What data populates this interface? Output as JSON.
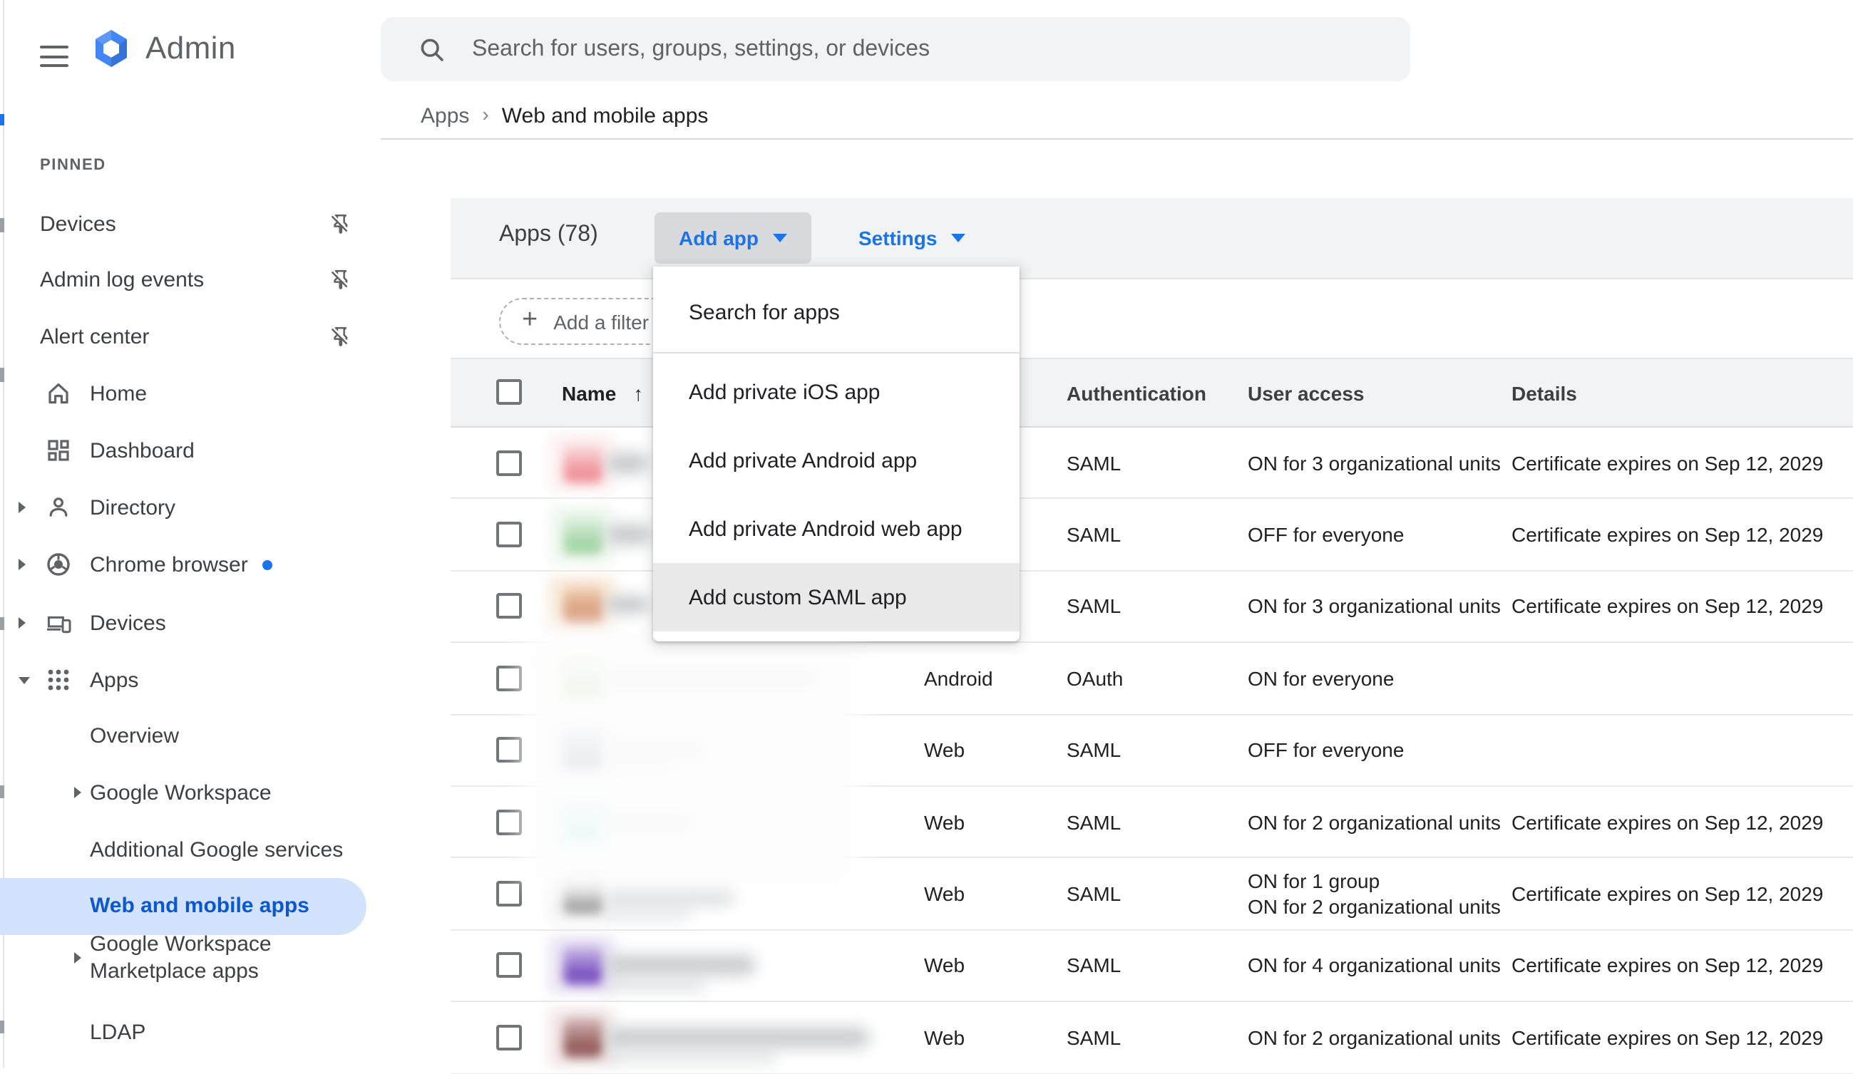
{
  "topbar": {
    "app_name": "Admin",
    "search_placeholder": "Search for users, groups, settings, or devices"
  },
  "breadcrumb": {
    "parent": "Apps",
    "separator": "›",
    "current": "Web and mobile apps"
  },
  "sidebar": {
    "pinned_label": "PINNED",
    "pinned_items": [
      {
        "label": "Devices"
      },
      {
        "label": "Admin log events"
      },
      {
        "label": "Alert center"
      }
    ],
    "items": [
      {
        "label": "Home",
        "icon": "home-icon",
        "arrow": "",
        "dot": false
      },
      {
        "label": "Dashboard",
        "icon": "dashboard-icon",
        "arrow": "",
        "dot": false
      },
      {
        "label": "Directory",
        "icon": "person-icon",
        "arrow": "right",
        "dot": false
      },
      {
        "label": "Chrome browser",
        "icon": "chrome-icon",
        "arrow": "right",
        "dot": true
      },
      {
        "label": "Devices",
        "icon": "devices-icon",
        "arrow": "right",
        "dot": false
      },
      {
        "label": "Apps",
        "icon": "apps-grid-icon",
        "arrow": "down",
        "dot": false
      }
    ],
    "apps_children": [
      {
        "label": "Overview",
        "arrow": "",
        "selected": false
      },
      {
        "label": "Google Workspace",
        "arrow": "right",
        "selected": false
      },
      {
        "label": "Additional Google services",
        "arrow": "",
        "selected": false
      },
      {
        "label": "Web and mobile apps",
        "arrow": "",
        "selected": true
      },
      {
        "lines": [
          "Google Workspace",
          "Marketplace apps"
        ],
        "arrow": "right",
        "selected": false
      },
      {
        "label": "LDAP",
        "arrow": "",
        "selected": false
      }
    ]
  },
  "toolbar": {
    "apps_count": "Apps (78)",
    "add_app": "Add app",
    "settings": "Settings"
  },
  "filter_bar": {
    "add_filter": "Add a filter"
  },
  "add_app_menu": {
    "items": [
      "Search for apps",
      "Add private iOS app",
      "Add private Android app",
      "Add private Android web app",
      "Add custom SAML app"
    ],
    "highlighted_index": 4,
    "highlighted_item": "Add custom SAML app"
  },
  "table": {
    "headers": {
      "name": "Name",
      "authentication": "Authentication",
      "user_access": "User access",
      "details": "Details"
    },
    "sort": {
      "column": "Name",
      "direction": "ascending",
      "icon": "↑"
    },
    "rows": [
      {
        "platform": "",
        "authentication": "SAML",
        "user_access": [
          "ON for 3 organizational units"
        ],
        "details": "Certificate expires on Sep 12, 2029",
        "icon_colors": {
          "top": "#fbe3e4",
          "bottom": "#ef949b",
          "halo": "#fdf3f3"
        },
        "redaction": {
          "w": 30,
          "o": 0.9,
          "w2": 0,
          "o2": 0
        }
      },
      {
        "platform": "",
        "authentication": "SAML",
        "user_access": [
          "OFF for everyone"
        ],
        "details": "Certificate expires on Sep 12, 2029",
        "icon_colors": {
          "top": "#e6f4e7",
          "bottom": "#a5d6a7",
          "halo": "#f2f9f2"
        },
        "redaction": {
          "w": 32,
          "o": 0.9,
          "w2": 0,
          "o2": 0
        }
      },
      {
        "platform": "",
        "authentication": "SAML",
        "user_access": [
          "ON for 3 organizational units"
        ],
        "details": "Certificate expires on Sep 12, 2029",
        "icon_colors": {
          "top": "#f4d9bf",
          "bottom": "#d2906b",
          "halo": "#f9ecdd"
        },
        "redaction": {
          "w": 30,
          "o": 0.9,
          "w2": 0,
          "o2": 0
        }
      },
      {
        "platform": "Android",
        "authentication": "OAuth",
        "user_access": [
          "ON for everyone"
        ],
        "details": "",
        "icon_colors": {
          "top": "#dcedc8",
          "bottom": "#7cb342",
          "halo": "#f1f8e9"
        },
        "redaction": {
          "w": 150,
          "o": 0.8,
          "w2": 0,
          "o2": 0
        }
      },
      {
        "platform": "Web",
        "authentication": "SAML",
        "user_access": [
          "OFF for everyone"
        ],
        "details": "",
        "icon_colors": {
          "top": "#aab4d4",
          "bottom": "#1f2f5c",
          "halo": "#e8eaf6"
        },
        "redaction": {
          "w": 70,
          "o": 0.8,
          "w2": 48,
          "o2": 0.5
        }
      },
      {
        "platform": "Web",
        "authentication": "SAML",
        "user_access": [
          "ON for 2 organizational units"
        ],
        "details": "Certificate expires on Sep 12, 2029",
        "icon_colors": {
          "top": "#b2ebf2",
          "bottom": "#4dd0e1",
          "halo": "#e0f7fa"
        },
        "redaction": {
          "w": 62,
          "o": 0.8,
          "w2": 0,
          "o2": 0
        }
      },
      {
        "platform": "Web",
        "authentication": "SAML",
        "user_access": [
          "ON for 1 group",
          "ON for 2 organizational units"
        ],
        "details": "Certificate expires on Sep 12, 2029",
        "icon_colors": {
          "top": "#e0e0e0",
          "bottom": "#9e9e9e",
          "halo": "#f5f5f5"
        },
        "redaction": {
          "w": 90,
          "o": 0.75,
          "w2": 60,
          "o2": 0.4
        }
      },
      {
        "platform": "Web",
        "authentication": "SAML",
        "user_access": [
          "ON for 4 organizational units"
        ],
        "details": "Certificate expires on Sep 12, 2029",
        "icon_colors": {
          "top": "#d1c4e9",
          "bottom": "#7e57c2",
          "halo": "#ede7f6"
        },
        "redaction": {
          "w": 105,
          "o": 0.85,
          "w2": 70,
          "o2": 0.5
        }
      },
      {
        "platform": "Web",
        "authentication": "SAML",
        "user_access": [
          "ON for 2 organizational units"
        ],
        "details": "Certificate expires on Sep 12, 2029",
        "icon_colors": {
          "top": "#d7b9b9",
          "bottom": "#96605f",
          "halo": "#f3e9e9"
        },
        "redaction": {
          "w": 185,
          "o": 0.85,
          "w2": 120,
          "o2": 0.45
        }
      }
    ]
  },
  "colors": {
    "accent_blue": "#1a73e8",
    "selected_text_blue": "#0b57d0",
    "selected_pill_bg": "#d3e3fd",
    "band_gray": "#f1f3f4",
    "pressed_button_gray": "#d8dadd",
    "menu_highlight_gray": "#e9e9e9"
  }
}
